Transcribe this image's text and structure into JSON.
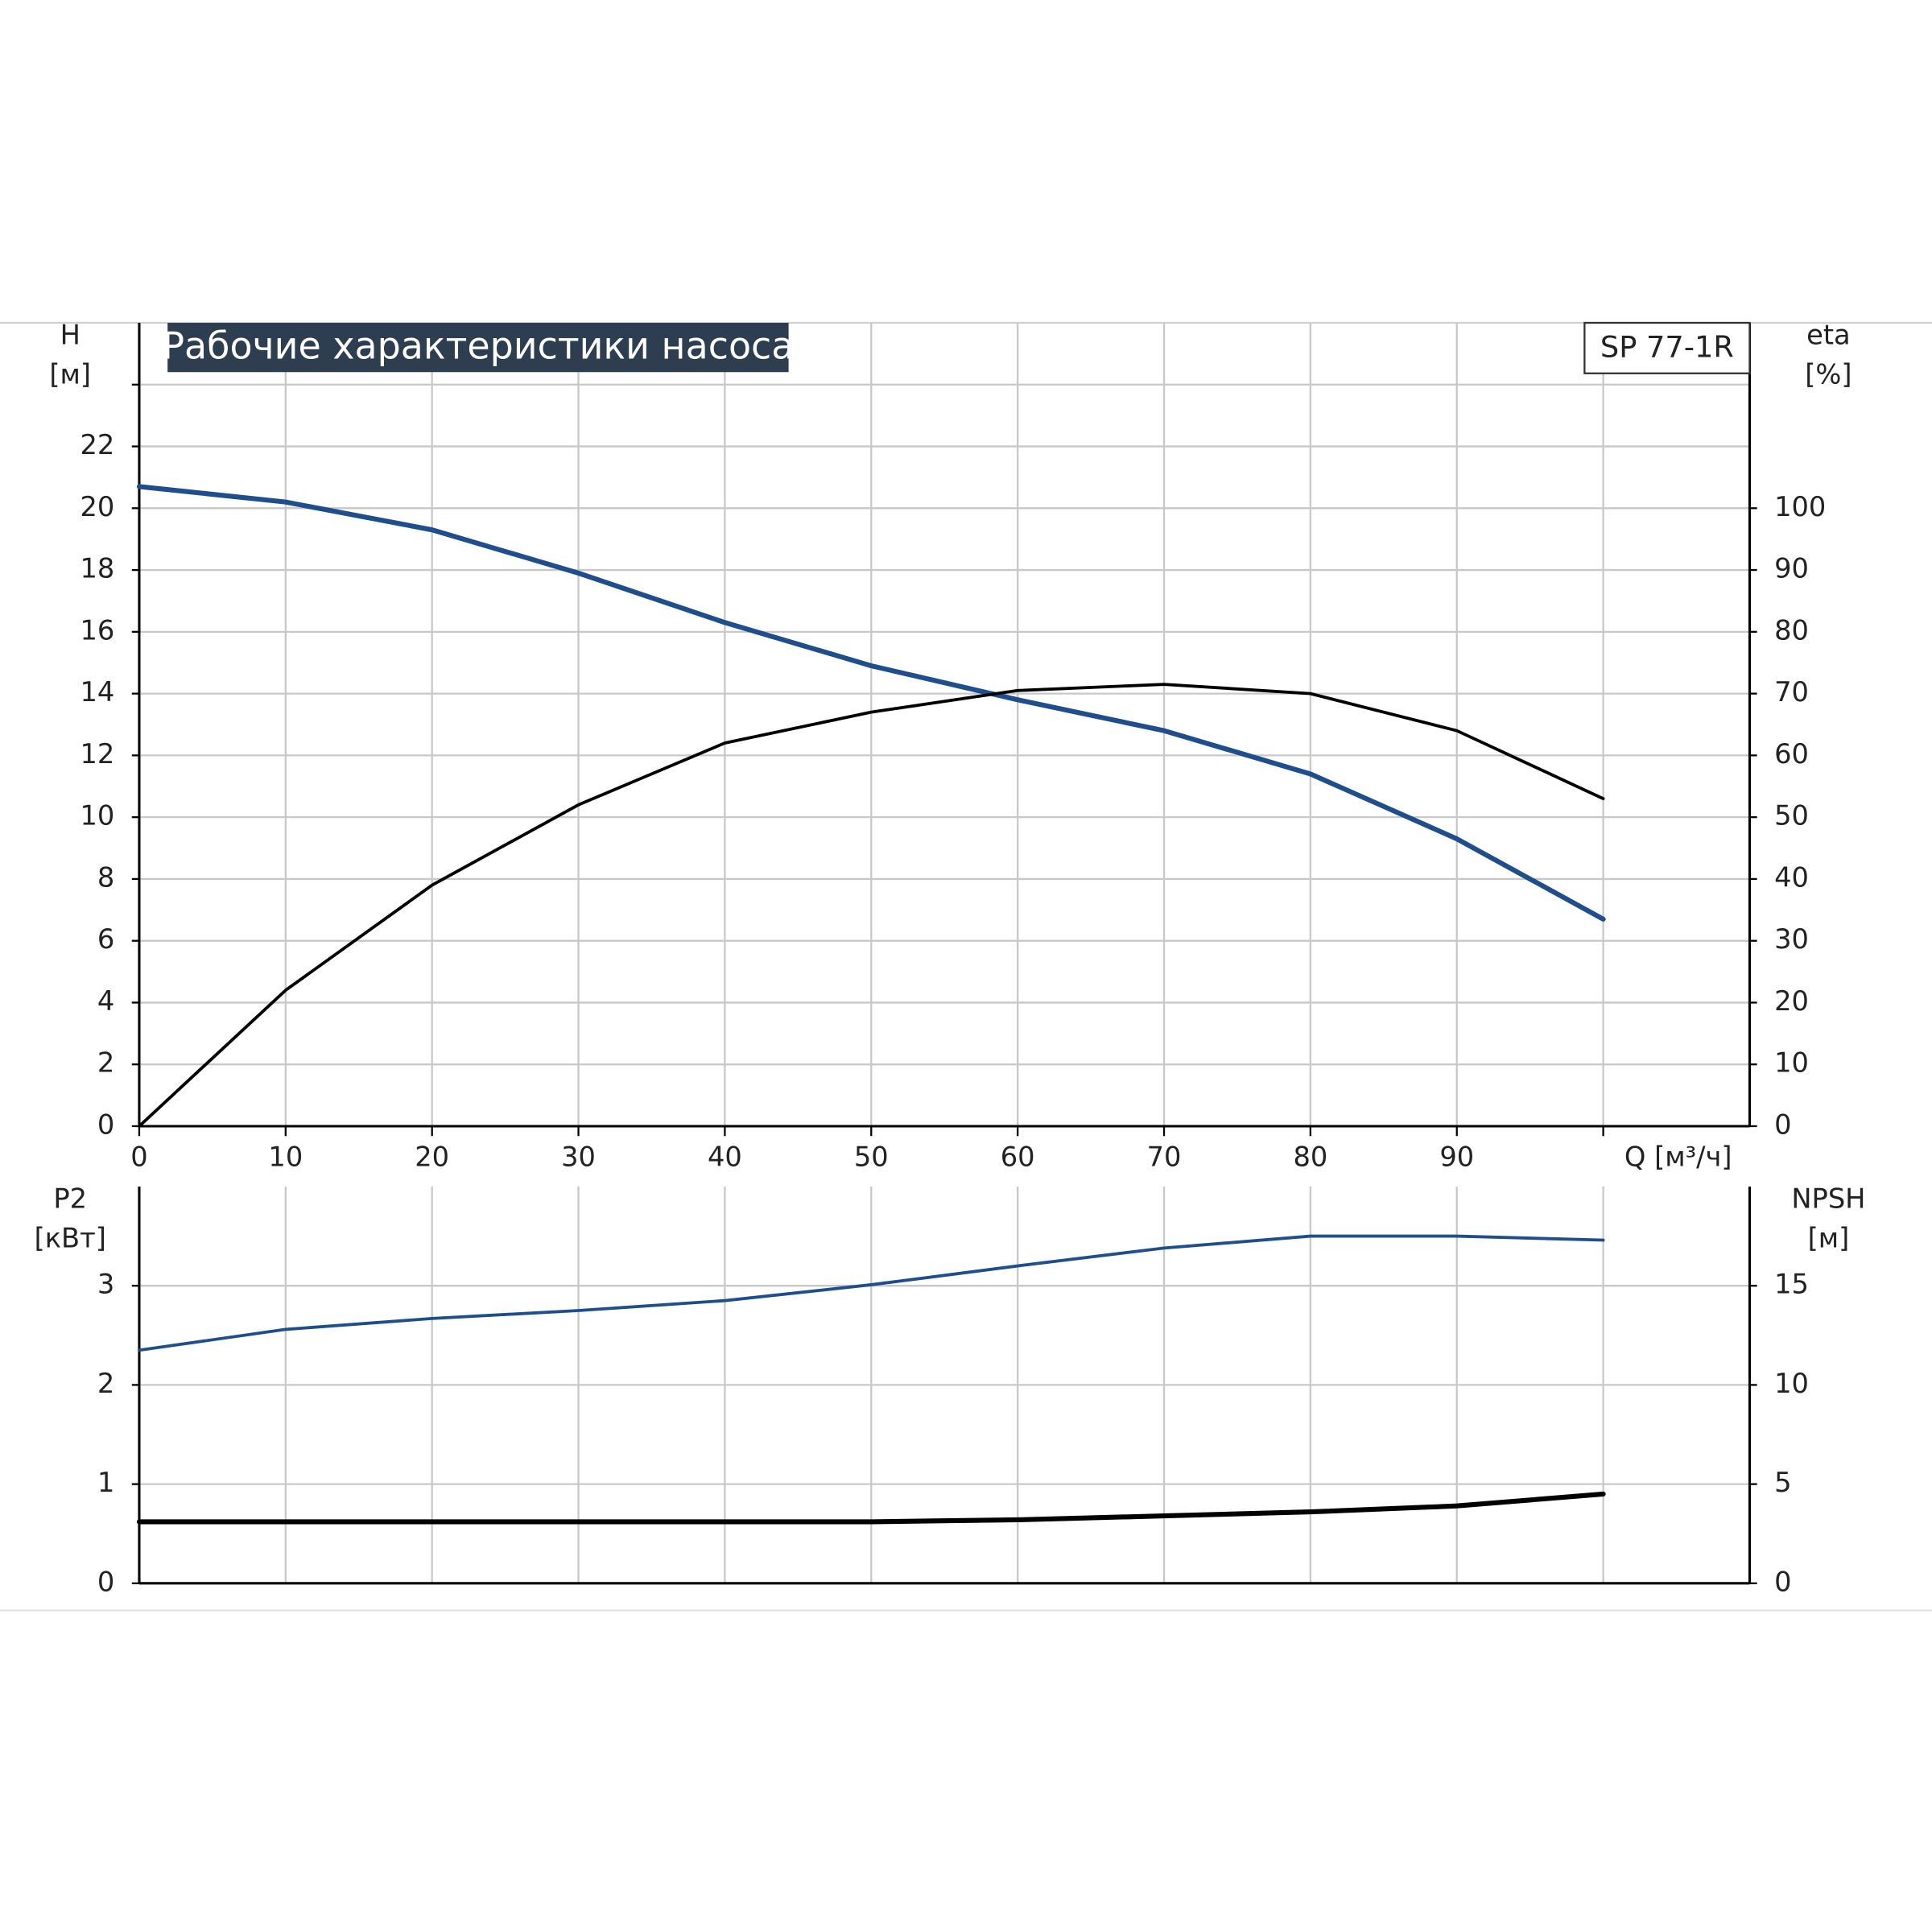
{
  "chart_data": [
    {
      "type": "line",
      "title": "Рабочие характеристики насоса",
      "model": "SP 77-1R",
      "ylabel": [
        "H",
        "[м]"
      ],
      "y2label": [
        "eta",
        "[%]"
      ],
      "xlabel": "Q [м³/ч]",
      "x": [
        0,
        10,
        20,
        30,
        40,
        50,
        60,
        70,
        80,
        90,
        100
      ],
      "xlim": [
        0,
        110
      ],
      "xticks": [
        0,
        10,
        20,
        30,
        40,
        50,
        60,
        70,
        80,
        90,
        {
          "value": 100,
          "label": null
        }
      ],
      "ylim": [
        0,
        26
      ],
      "yticks": [
        0,
        2,
        4,
        6,
        8,
        10,
        12,
        14,
        16,
        18,
        20,
        22,
        {
          "value": 24,
          "label": null
        }
      ],
      "y2lim": [
        0,
        130
      ],
      "y2ticks": [
        0,
        10,
        20,
        30,
        40,
        50,
        60,
        70,
        80,
        90,
        100
      ],
      "grid": true,
      "series": [
        {
          "name": "H",
          "color": "#1f4e8c",
          "values": [
            20.7,
            20.2,
            19.3,
            17.9,
            16.3,
            14.9,
            13.8,
            12.8,
            11.4,
            9.3,
            6.7
          ]
        },
        {
          "name": "eta",
          "color": "#000000",
          "axis": "y2",
          "values": [
            0,
            22,
            39,
            52,
            62,
            67,
            70.5,
            71.5,
            70,
            64,
            53
          ]
        }
      ]
    },
    {
      "type": "line",
      "ylabel": [
        "P2",
        "[кВт]"
      ],
      "y2label": [
        "NPSH",
        "[м]"
      ],
      "x": [
        0,
        10,
        20,
        30,
        40,
        50,
        60,
        70,
        80,
        90,
        100
      ],
      "xlim": [
        0,
        110
      ],
      "xticks": [
        {
          "value": 0,
          "label": null
        },
        {
          "value": 10,
          "label": null
        },
        {
          "value": 20,
          "label": null
        },
        {
          "value": 30,
          "label": null
        },
        {
          "value": 40,
          "label": null
        },
        {
          "value": 50,
          "label": null
        },
        {
          "value": 60,
          "label": null
        },
        {
          "value": 70,
          "label": null
        },
        {
          "value": 80,
          "label": null
        },
        {
          "value": 90,
          "label": null
        },
        {
          "value": 100,
          "label": null
        }
      ],
      "ylim": [
        0,
        4
      ],
      "yticks": [
        0,
        1,
        2,
        3
      ],
      "y2lim": [
        0,
        20
      ],
      "y2ticks": [
        0,
        5,
        10,
        15
      ],
      "grid": true,
      "series": [
        {
          "name": "P2",
          "color": "#1f4e8c",
          "values": [
            2.35,
            2.56,
            2.67,
            2.75,
            2.85,
            3.01,
            3.2,
            3.38,
            3.5,
            3.5,
            3.46
          ]
        },
        {
          "name": "NPSH",
          "color": "#000000",
          "axis": "y2",
          "values": [
            3.1,
            3.1,
            3.1,
            3.1,
            3.1,
            3.1,
            3.2,
            3.4,
            3.6,
            3.9,
            4.5
          ]
        }
      ]
    }
  ]
}
